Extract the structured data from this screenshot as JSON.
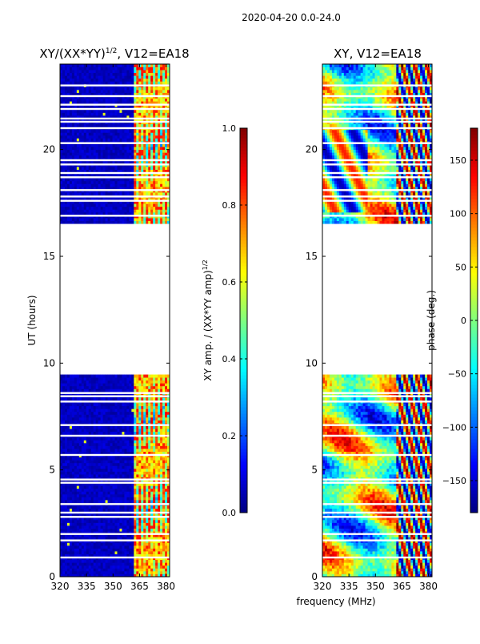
{
  "suptitle": "2020-04-20 0.0-24.0",
  "chart_data": [
    {
      "type": "heatmap",
      "id": "amp",
      "title": "XY/(XX*YY)",
      "title_sup": "1/2",
      "title_suffix": ", V12=EA18",
      "xlabel": "",
      "ylabel": "UT (hours)",
      "xlim": [
        320,
        382
      ],
      "ylim": [
        0,
        24
      ],
      "xticks": [
        320,
        335,
        350,
        365,
        380
      ],
      "yticks": [
        0,
        5,
        10,
        15,
        20
      ],
      "data_gap_hours": [
        9.5,
        16.5
      ],
      "colorbar": {
        "label": "XY amp. / (XX*YY amp)",
        "label_sup": "1/2",
        "range": [
          0.0,
          1.0
        ],
        "ticks": [
          "0.0",
          "0.2",
          "0.4",
          "0.6",
          "0.8",
          "1.0"
        ],
        "tick_values": [
          0.0,
          0.2,
          0.4,
          0.6,
          0.8,
          1.0
        ]
      }
    },
    {
      "type": "heatmap",
      "id": "phase",
      "title": "XY, V12=EA18",
      "xlabel": "frequency (MHz)",
      "ylabel": "",
      "xlim": [
        320,
        382
      ],
      "ylim": [
        0,
        24
      ],
      "xticks": [
        320,
        335,
        350,
        365,
        380
      ],
      "yticks": [
        0,
        5,
        10,
        15,
        20
      ],
      "data_gap_hours": [
        9.5,
        16.5
      ],
      "colorbar": {
        "label": "phase (deg.)",
        "range": [
          -180,
          180
        ],
        "ticks": [
          "150",
          "100",
          "50",
          "0",
          "−50",
          "−100",
          "−150"
        ],
        "tick_values": [
          150,
          100,
          50,
          0,
          -50,
          -100,
          -150
        ]
      }
    }
  ],
  "colors": {
    "jet": [
      "#00007f",
      "#0000ff",
      "#007fff",
      "#00ffff",
      "#7fff7f",
      "#ffff00",
      "#ff7f00",
      "#ff0000",
      "#7f0000"
    ]
  }
}
